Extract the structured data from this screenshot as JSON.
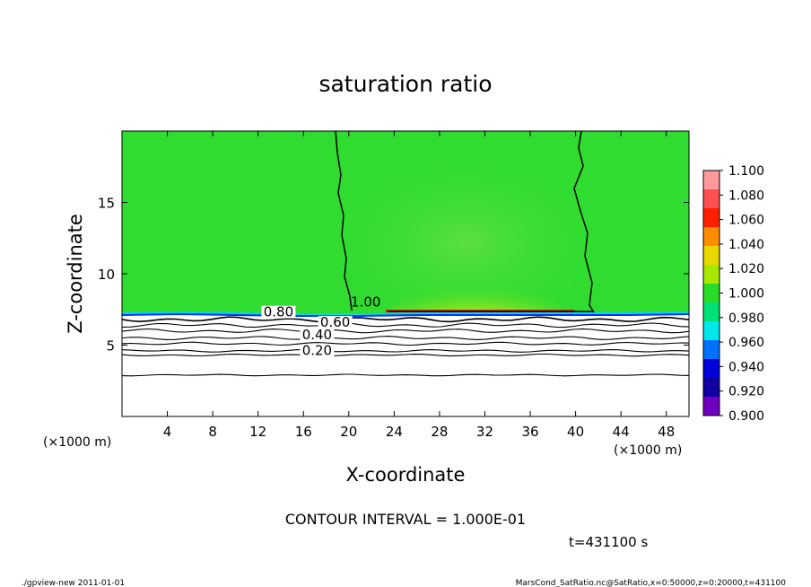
{
  "chart_data": {
    "type": "heatmap",
    "title": "saturation ratio",
    "xlabel": "X-coordinate",
    "ylabel": "Z-coordinate",
    "x_unit_left": "(×1000 m)",
    "x_unit_right": "(×1000 m)",
    "xlim": [
      0,
      50
    ],
    "ylim": [
      0,
      20
    ],
    "x_ticks": [
      "4",
      "8",
      "12",
      "16",
      "20",
      "24",
      "28",
      "32",
      "36",
      "40",
      "44",
      "48"
    ],
    "x_tick_values": [
      4,
      8,
      12,
      16,
      20,
      24,
      28,
      32,
      36,
      40,
      44,
      48
    ],
    "y_ticks": [
      "5",
      "10",
      "15"
    ],
    "y_tick_values": [
      5,
      10,
      15
    ],
    "colorbar": {
      "labels": [
        "1.100",
        "1.080",
        "1.060",
        "1.040",
        "1.020",
        "1.000",
        "0.980",
        "0.960",
        "0.940",
        "0.920",
        "0.900"
      ],
      "colors": [
        "#ff9a9a",
        "#ff5050",
        "#ff2000",
        "#ff8c00",
        "#e8d800",
        "#a8e800",
        "#28dc28",
        "#00e078",
        "#00e8e8",
        "#0070ff",
        "#0000d8",
        "#1000a0",
        "#7000c0"
      ]
    },
    "contour_labels": [
      {
        "text": "1.00",
        "x": 21.5,
        "y": 7.7
      },
      {
        "text": "0.80",
        "x": 13.8,
        "y": 7.0
      },
      {
        "text": "0.60",
        "x": 18.8,
        "y": 6.3
      },
      {
        "text": "0.40",
        "x": 17.2,
        "y": 5.4
      },
      {
        "text": "0.20",
        "x": 17.2,
        "y": 4.3
      }
    ],
    "contour_levels_below": [
      {
        "value": 0.8,
        "z": 6.8
      },
      {
        "value": 0.7,
        "z": 6.4
      },
      {
        "value": 0.6,
        "z": 6.0
      },
      {
        "value": 0.5,
        "z": 5.5
      },
      {
        "value": 0.4,
        "z": 5.1
      },
      {
        "value": 0.3,
        "z": 4.6
      },
      {
        "value": 0.2,
        "z": 4.3
      },
      {
        "value": 0.1,
        "z": 2.9
      }
    ],
    "contour_interval": "CONTOUR INTERVAL = 1.000E-01",
    "time": "t=431100 s"
  },
  "footer": {
    "left": "./gpview-new   2011-01-01",
    "right": "MarsCond_SatRatio.nc@SatRatio,x=0:50000,z=0:20000,t=431100"
  }
}
